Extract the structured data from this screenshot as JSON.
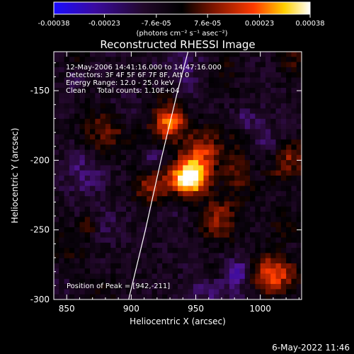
{
  "colorbar": {
    "tick_labels": [
      "-0.00038",
      "-0.00023",
      "-7.6e-05",
      "7.6e-05",
      "0.00023",
      "0.00038"
    ],
    "tick_values": [
      -0.00038,
      -0.00023,
      -7.6e-05,
      7.6e-05,
      0.00023,
      0.00038
    ],
    "range": [
      -0.00038,
      0.00038
    ],
    "colors": [
      "#1a0cff",
      "#3a0aa0",
      "#22082a",
      "#000000",
      "#7a1400",
      "#ff3a00",
      "#ffd000",
      "#ffffff"
    ]
  },
  "chart_data": {
    "type": "heatmap",
    "title": "Reconstructed RHESSI Image",
    "xlabel": "Heliocentric X (arcsec)",
    "ylabel": "Heliocentric Y (arcsec)",
    "xlim": [
      840,
      1032
    ],
    "ylim": [
      -300,
      -122
    ],
    "x_ticks": [
      850,
      900,
      950,
      1000
    ],
    "x_tick_labels": [
      "850",
      "900",
      "950",
      "1000"
    ],
    "y_ticks": [
      -150,
      -200,
      -250,
      -300
    ],
    "y_tick_labels": [
      "-150",
      "-200",
      "-250",
      "-300"
    ],
    "annotations": [
      "12-May-2006 14:41:16.000 to 14:47:16.000",
      "Detectors: 3F 4F 5F 6F 7F 8F, Att 0",
      "Energy Range: 12.0 - 25.0 keV",
      "Clean     Total counts: 1.10E+04"
    ],
    "peak_label": "Position of Peak = [942,-211]",
    "peak": [
      942,
      -211
    ],
    "limb_curve": [
      [
        898,
        -300
      ],
      [
        911,
        -250
      ],
      [
        923,
        -200
      ],
      [
        936,
        -150
      ],
      [
        944,
        -122
      ]
    ]
  },
  "colorbar_unit": "(photons cm⁻² s⁻¹ asec⁻²)",
  "footer_timestamp": "6-May-2022 11:46"
}
